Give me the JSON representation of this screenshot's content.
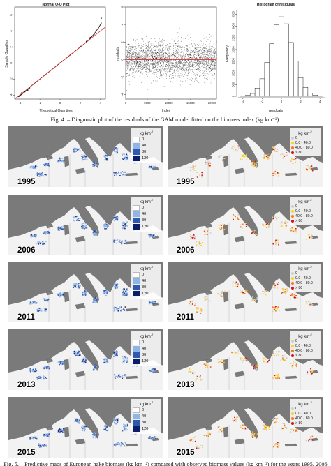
{
  "figure4": {
    "qq_plot": {
      "title": "Normal Q-Q Plot",
      "xlabel": "Theoretical Quantiles",
      "ylabel": "Sample Quantiles",
      "xticks": [
        "-4",
        "-2",
        "0",
        "2",
        "4"
      ],
      "yticks": [
        "-4",
        "-2",
        "0",
        "2",
        "4",
        "6"
      ]
    },
    "index_plot": {
      "title": "",
      "xlabel": "Index",
      "ylabel": "residuals",
      "xticks": [
        "0",
        "5000",
        "10000",
        "15000",
        "20000"
      ],
      "yticks": [
        "-4",
        "-2",
        "0",
        "2",
        "4",
        "6"
      ]
    },
    "histogram": {
      "title": "Histogram of residuals",
      "xlabel": "residuals",
      "ylabel": "Frequency",
      "xticks": [
        "-4",
        "-2",
        "0",
        "2",
        "4"
      ],
      "yticks": [
        "0",
        "500",
        "1000",
        "1500",
        "2000",
        "2500",
        "3000",
        "3500"
      ]
    },
    "caption": "Fig. 4. – Diagnostic plot of the residuals of the GAM model fitted on the biomass index (kg km⁻²)."
  },
  "chart_data": [
    {
      "type": "scatter",
      "title": "Normal Q-Q Plot",
      "xlabel": "Theoretical Quantiles",
      "ylabel": "Sample Quantiles",
      "xlim": [
        -4.5,
        4.5
      ],
      "ylim": [
        -4.5,
        7
      ],
      "reference_line": {
        "slope": 1,
        "intercept": 0,
        "color": "#e0302a"
      },
      "points": [
        [
          -4.1,
          -4.2
        ],
        [
          -3.8,
          -3.7
        ],
        [
          -3.5,
          -3.6
        ],
        [
          -3.2,
          -3.4
        ],
        [
          -3,
          -3.1
        ],
        [
          -2.6,
          -2.6
        ],
        [
          -2,
          -2.1
        ],
        [
          -1,
          -1
        ],
        [
          0,
          0
        ],
        [
          1,
          1
        ],
        [
          2,
          2.1
        ],
        [
          2.6,
          2.7
        ],
        [
          3,
          3.2
        ],
        [
          3.4,
          3.6
        ],
        [
          3.8,
          4.3
        ],
        [
          4.1,
          5.6
        ]
      ]
    },
    {
      "type": "scatter",
      "xlabel": "Index",
      "ylabel": "residuals",
      "xlim": [
        0,
        21000
      ],
      "ylim": [
        -4.5,
        6
      ],
      "n_points": 21000,
      "spread_sd": 1,
      "reference_line": {
        "y": 0,
        "color": "#e0302a"
      }
    },
    {
      "type": "bar",
      "title": "Histogram of residuals",
      "xlabel": "residuals",
      "ylabel": "Frequency",
      "categories": [
        "-4",
        "-3.5",
        "-3",
        "-2.5",
        "-2",
        "-1.5",
        "-1",
        "-0.5",
        "0",
        "0.5",
        "1",
        "1.5",
        "2",
        "2.5",
        "3",
        "3.5",
        "4"
      ],
      "values": [
        10,
        40,
        120,
        350,
        750,
        1450,
        2250,
        3050,
        3400,
        3100,
        2300,
        1500,
        800,
        380,
        130,
        50,
        15
      ],
      "ylim": [
        0,
        3700
      ]
    }
  ],
  "figure5": {
    "caption": "Fig. 5. – Predictive maps of European hake biomass (kg km⁻²) compared with observed biomass values (kg km⁻²) for the years 1995, 2006",
    "legend_pred": {
      "title": "kg km",
      "title_sup": "-2",
      "entries": [
        "0",
        "40",
        "80",
        "120"
      ],
      "colors": [
        "#ffffff",
        "#8fb4e6",
        "#2f58b0",
        "#0a1d66"
      ]
    },
    "legend_obs": {
      "entries": [
        "0",
        "0.0 - 40.0",
        "40.0 - 80.0",
        "> 80"
      ],
      "colors": [
        "#cfcfcf",
        "#ffd21a",
        "#f07a1e",
        "#d8101a"
      ]
    },
    "years": [
      "1995",
      "2006",
      "2011",
      "2013",
      "2015"
    ],
    "colors": {
      "land": "#7a7a7a",
      "sea": "#f2f2f2",
      "border": "#a8a8a8"
    }
  }
}
